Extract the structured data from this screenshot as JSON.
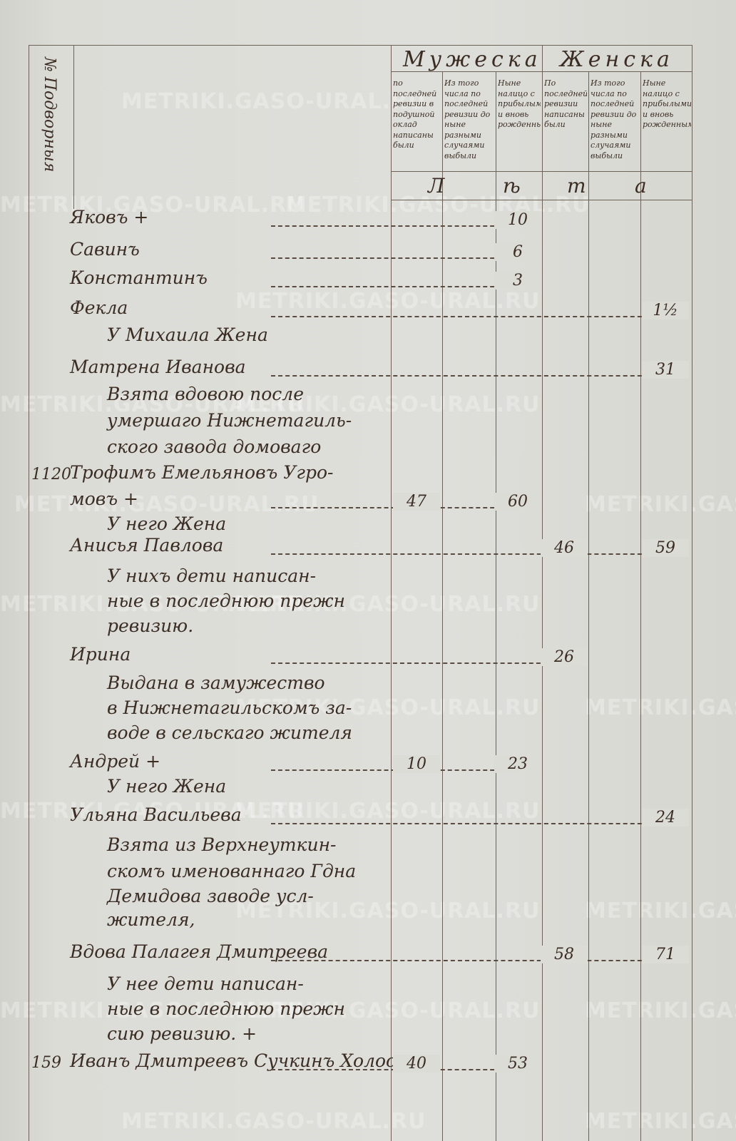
{
  "watermark": "METRIKI.GASO-URAL.RU",
  "header": {
    "number_column": "№ Подворныя",
    "male": "Мужеска",
    "female": "Женска",
    "male_columns": [
      "по последней ревизии в подушной оклад написаны были",
      "Из того числа по последней ревизии до ныне разными случаями выбыли",
      "Ныне налицо с прибылыми и вновь рожденными"
    ],
    "female_columns": [
      "По последней ревизии написаны были",
      "Из того числа по последней ревизии до ныне разными случаями выбыли",
      "Ныне налицо с прибылыми и вновь рожденными"
    ],
    "years_label": [
      "Л",
      "ѣ",
      "т",
      "а"
    ]
  },
  "rows": [
    {
      "name": "Яковъ  +",
      "male_now": "10"
    },
    {
      "name": "Савинъ",
      "male_now": "6"
    },
    {
      "name": "Константинъ",
      "male_now": "3"
    },
    {
      "name": "Фекла",
      "female_now": "1½"
    },
    {
      "name": "У Михаила Жена",
      "indent": true
    },
    {
      "name": "Матрена Иванова",
      "female_now": "31"
    },
    {
      "name": "Взята вдовою после",
      "indent": true
    },
    {
      "name": "умершаго Нижнетагиль-",
      "indent": true
    },
    {
      "name": "ского завода домоваго",
      "indent": true
    },
    {
      "num": "1120",
      "name": "Трофимъ Емельяновъ Угро-"
    },
    {
      "name": "мовъ  +",
      "male_last": "47",
      "male_now": "60"
    },
    {
      "name": "У него Жена",
      "indent": true
    },
    {
      "name": "Анисья Павлова",
      "female_last": "46",
      "female_now": "59"
    },
    {
      "name": "У нихъ дети написан-",
      "indent": true
    },
    {
      "name": "ные в последнюю прежн",
      "indent": true
    },
    {
      "name": "ревизию.",
      "indent": true
    },
    {
      "name": "Ирина",
      "female_last": "26"
    },
    {
      "name": "Выдана в замужество",
      "indent": true
    },
    {
      "name": "в Нижнетагильскомъ за-",
      "indent": true
    },
    {
      "name": "воде в сельскаго жителя",
      "indent": true
    },
    {
      "name": "Андрей  +",
      "male_last": "10",
      "male_now": "23"
    },
    {
      "name": "У него Жена",
      "indent": true
    },
    {
      "name": "Ульяна Васильева",
      "female_now": "24"
    },
    {
      "name": "Взята из Верхнеуткин-",
      "indent": true
    },
    {
      "name": "скомъ именованнаго Гдна",
      "indent": true
    },
    {
      "name": "Демидова заводе усл-",
      "indent": true
    },
    {
      "name": "жителя,",
      "indent": true
    },
    {
      "name": "Вдова Палагея Дмитреева",
      "female_last": "58",
      "female_now": "71"
    },
    {
      "name": "У нее дети написан-",
      "indent": true
    },
    {
      "name": "ные в последнюю прежн",
      "indent": true
    },
    {
      "name": "сию ревизию. +",
      "indent": true
    },
    {
      "num": "159",
      "name": "Иванъ Дмитреевъ Сучкинъ Холостъ",
      "male_last": "40",
      "male_now": "53"
    }
  ]
}
